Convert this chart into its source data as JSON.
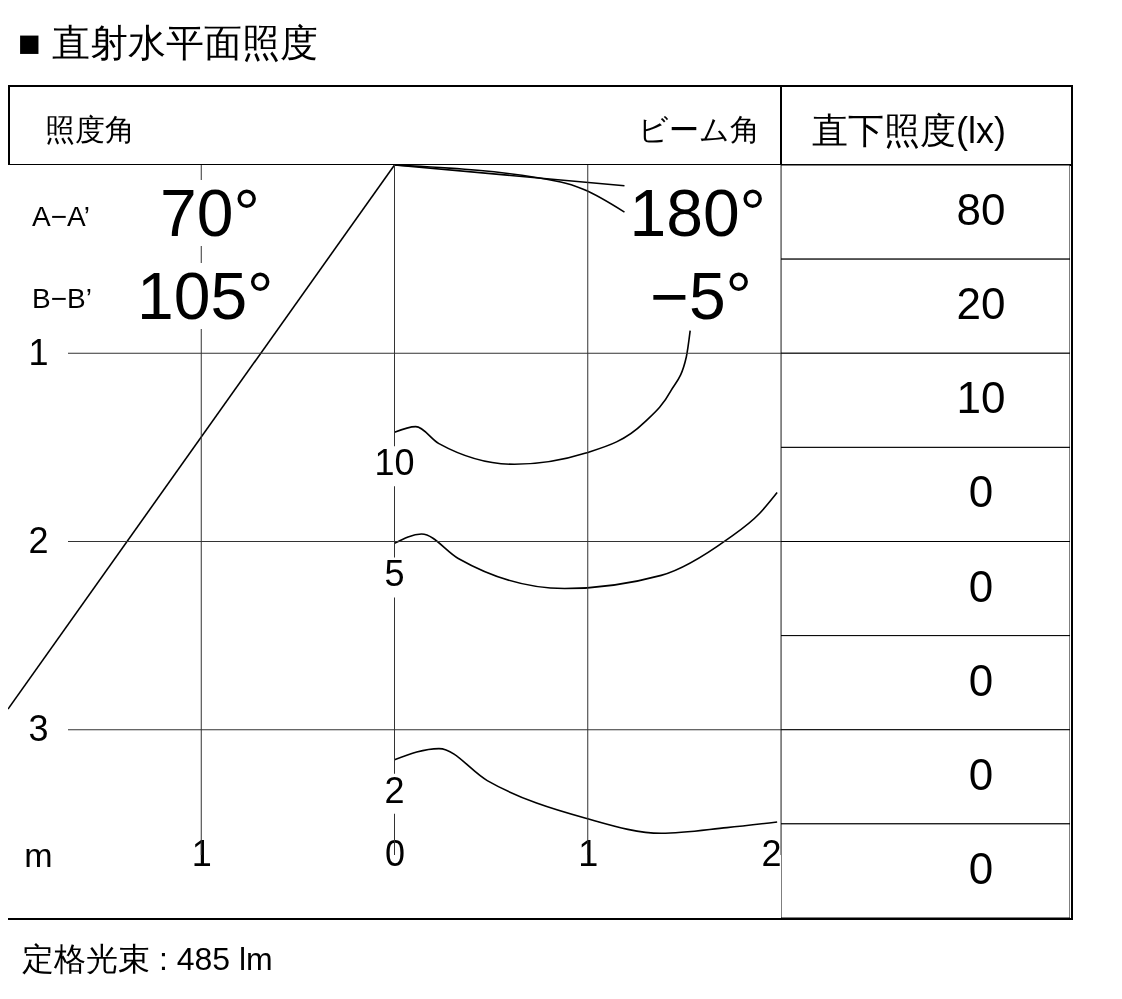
{
  "chart_data": [
    {
      "type": "line",
      "title": "■ 直射水平面照度",
      "xlabel": "m",
      "xlim": [
        -2,
        2
      ],
      "ylim": [
        4,
        0
      ],
      "xticks": [
        {
          "value": -1,
          "label": "1"
        },
        0,
        1,
        2
      ],
      "yticks": [
        1,
        2,
        3
      ],
      "grid": true,
      "annotations": [
        "照度角",
        "ビーム角",
        "A−A’",
        "70°",
        "B−B’",
        "105°",
        "180°",
        "−5°",
        "定格光束 : 485 lm"
      ],
      "series": [
        {
          "name": "10",
          "color": "#000000",
          "x": [
            0,
            0.11,
            0.23,
            0.62,
            0.99,
            1.29,
            1.43,
            1.51,
            1.53
          ],
          "values": [
            1.42,
            1.39,
            1.48,
            1.59,
            1.53,
            1.37,
            1.2,
            1.02,
            0.88
          ]
        },
        {
          "name": "5",
          "color": "#000000",
          "x": [
            0,
            0.14,
            0.33,
            0.88,
            1.38,
            1.72,
            1.89,
            1.98
          ],
          "values": [
            2.01,
            1.96,
            2.09,
            2.25,
            2.18,
            1.99,
            1.85,
            1.74
          ]
        },
        {
          "name": "2",
          "color": "#000000",
          "x": [
            0,
            0.23,
            0.48,
            0.99,
            1.38,
            1.72,
            1.98
          ],
          "values": [
            3.16,
            3.1,
            3.27,
            3.47,
            3.55,
            3.52,
            3.49
          ]
        },
        {
          "color": "#000000",
          "x": [
            0,
            -2
          ],
          "values": [
            0,
            2.89
          ]
        },
        {
          "color": "#000000",
          "x": [
            0,
            1.19
          ],
          "values": [
            0,
            0.11
          ]
        },
        {
          "color": "#000000",
          "x": [
            0,
            0.86,
            0.98,
            1.19
          ],
          "values": [
            0,
            0.09,
            0.13,
            0.25
          ]
        }
      ]
    },
    {
      "type": "other",
      "title": "直下照度(lx)",
      "categories": [
        null,
        null,
        null,
        null,
        null,
        null,
        null,
        null
      ],
      "values": [
        80,
        20,
        10,
        0,
        0,
        0,
        0,
        0
      ],
      "data_labels": true
    }
  ]
}
